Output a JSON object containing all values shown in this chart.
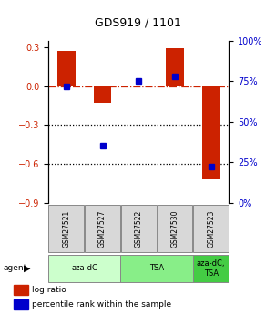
{
  "title": "GDS919 / 1101",
  "samples": [
    "GSM27521",
    "GSM27527",
    "GSM27522",
    "GSM27530",
    "GSM27523"
  ],
  "log_ratio": [
    0.27,
    -0.13,
    0.0,
    0.29,
    -0.72
  ],
  "percentile": [
    72,
    35,
    75,
    78,
    22
  ],
  "agent_groups": [
    {
      "label": "aza-dC",
      "start": 0,
      "end": 1,
      "color": "#ccffcc"
    },
    {
      "label": "TSA",
      "start": 2,
      "end": 3,
      "color": "#88ee88"
    },
    {
      "label": "aza-dC,\nTSA",
      "start": 4,
      "end": 4,
      "color": "#44cc44"
    }
  ],
  "bar_color": "#cc2200",
  "dot_color": "#0000cc",
  "ylim_left": [
    -0.9,
    0.35
  ],
  "ylim_right": [
    0,
    100
  ],
  "yticks_left": [
    0.3,
    0.0,
    -0.3,
    -0.6,
    -0.9
  ],
  "yticks_right": [
    100,
    75,
    50,
    25,
    0
  ],
  "hline_y": 0.0,
  "dotted_lines": [
    -0.3,
    -0.6
  ],
  "bar_width": 0.5,
  "legend_items": [
    {
      "color": "#cc2200",
      "label": "log ratio"
    },
    {
      "color": "#0000cc",
      "label": "percentile rank within the sample"
    }
  ]
}
